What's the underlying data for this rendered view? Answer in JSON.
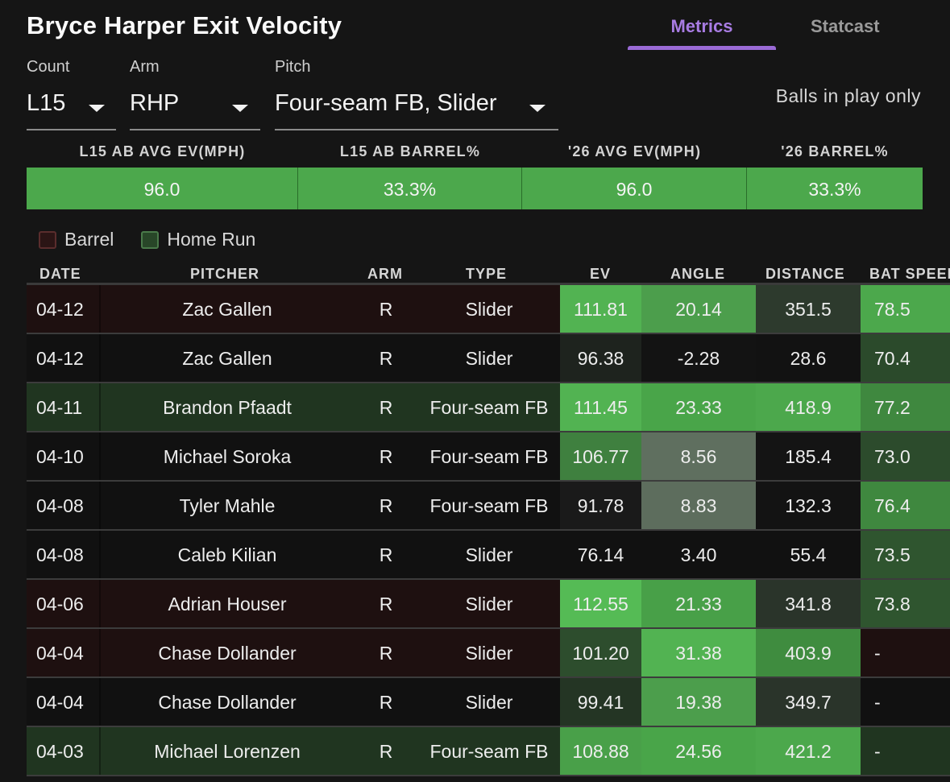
{
  "title": "Bryce Harper Exit Velocity",
  "tabs": {
    "metrics": "Metrics",
    "statcast": "Statcast"
  },
  "filters": {
    "count": {
      "label": "Count",
      "value": "L15"
    },
    "arm": {
      "label": "Arm",
      "value": "RHP"
    },
    "pitch": {
      "label": "Pitch",
      "value": "Four-seam FB, Slider"
    }
  },
  "balls_in_play": "Balls in play only",
  "summary": {
    "headers": [
      "L15 AB AVG EV(MPH)",
      "L15 AB BARREL%",
      "'26 AVG EV(MPH)",
      "'26 BARREL%"
    ],
    "values": [
      "96.0",
      "33.3%",
      "96.0",
      "33.3%"
    ]
  },
  "legend": {
    "barrel": "Barrel",
    "home_run": "Home Run"
  },
  "columns": [
    "DATE",
    "PITCHER",
    "ARM",
    "TYPE",
    "EV",
    "ANGLE",
    "DISTANCE",
    "BAT SPEED"
  ],
  "rows": [
    {
      "date": "04-12",
      "pitcher": "Zac Gallen",
      "arm": "R",
      "type": "Slider",
      "ev": "111.81",
      "angle": "20.14",
      "distance": "351.5",
      "bat": "78.5",
      "kind": "barrel",
      "ev_bg": "#52b352",
      "ang_bg": "#4c9e4c",
      "dist_bg": "#2d3a2d",
      "bat_bg": "#4ca84c"
    },
    {
      "date": "04-12",
      "pitcher": "Zac Gallen",
      "arm": "R",
      "type": "Slider",
      "ev": "96.38",
      "angle": "-2.28",
      "distance": "28.6",
      "bat": "70.4",
      "kind": "plain",
      "ev_bg": "#1e231e",
      "ang_bg": "#131313",
      "dist_bg": "#121212",
      "bat_bg": "#2b4a2b"
    },
    {
      "date": "04-11",
      "pitcher": "Brandon Pfaadt",
      "arm": "R",
      "type": "Four-seam FB",
      "ev": "111.45",
      "angle": "23.33",
      "distance": "418.9",
      "bat": "77.2",
      "kind": "hr",
      "ev_bg": "#52b352",
      "ang_bg": "#49a549",
      "dist_bg": "#4ca84c",
      "bat_bg": "#3f883f"
    },
    {
      "date": "04-10",
      "pitcher": "Michael Soroka",
      "arm": "R",
      "type": "Four-seam FB",
      "ev": "106.77",
      "angle": "8.56",
      "distance": "185.4",
      "bat": "73.0",
      "kind": "plain",
      "ev_bg": "#3f803f",
      "ang_bg": "#5f6f5f",
      "dist_bg": "#141414",
      "bat_bg": "#2c4b2c"
    },
    {
      "date": "04-08",
      "pitcher": "Tyler Mahle",
      "arm": "R",
      "type": "Four-seam FB",
      "ev": "91.78",
      "angle": "8.83",
      "distance": "132.3",
      "bat": "76.4",
      "kind": "plain",
      "ev_bg": "#1a1a1a",
      "ang_bg": "#5d6d5d",
      "dist_bg": "#131313",
      "bat_bg": "#3f883f"
    },
    {
      "date": "04-08",
      "pitcher": "Caleb Kilian",
      "arm": "R",
      "type": "Slider",
      "ev": "76.14",
      "angle": "3.40",
      "distance": "55.4",
      "bat": "73.5",
      "kind": "plain",
      "ev_bg": "#111111",
      "ang_bg": "#111111",
      "dist_bg": "#111111",
      "bat_bg": "#2f552f"
    },
    {
      "date": "04-06",
      "pitcher": "Adrian Houser",
      "arm": "R",
      "type": "Slider",
      "ev": "112.55",
      "angle": "21.33",
      "distance": "341.8",
      "bat": "73.8",
      "kind": "barrel",
      "ev_bg": "#55bb55",
      "ang_bg": "#48a048",
      "dist_bg": "#2a342a",
      "bat_bg": "#2f552f"
    },
    {
      "date": "04-04",
      "pitcher": "Chase Dollander",
      "arm": "R",
      "type": "Slider",
      "ev": "101.20",
      "angle": "31.38",
      "distance": "403.9",
      "bat": "-",
      "kind": "barrel",
      "ev_bg": "#2d4d2d",
      "ang_bg": "#52b352",
      "dist_bg": "#3f8c3f",
      "bat_bg": "#1e1010"
    },
    {
      "date": "04-04",
      "pitcher": "Chase Dollander",
      "arm": "R",
      "type": "Slider",
      "ev": "99.41",
      "angle": "19.38",
      "distance": "349.7",
      "bat": "-",
      "kind": "plain",
      "ev_bg": "#243524",
      "ang_bg": "#4c9e4c",
      "dist_bg": "#2a342a",
      "bat_bg": "#111111"
    },
    {
      "date": "04-03",
      "pitcher": "Michael Lorenzen",
      "arm": "R",
      "type": "Four-seam FB",
      "ev": "108.88",
      "angle": "24.56",
      "distance": "421.2",
      "bat": "-",
      "kind": "hr",
      "ev_bg": "#49a049",
      "ang_bg": "#49a549",
      "dist_bg": "#4ca84c",
      "bat_bg": "#203520"
    }
  ]
}
